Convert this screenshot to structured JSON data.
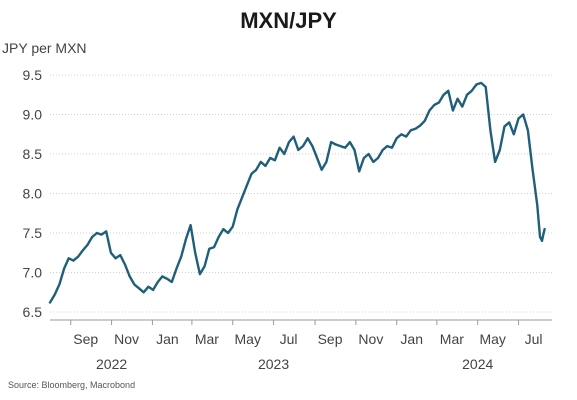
{
  "chart_data": {
    "type": "line",
    "title": "MXN/JPY",
    "ylabel": "JPY per MXN",
    "xlabel": "",
    "ylim": [
      6.5,
      9.5
    ],
    "yticks": [
      6.5,
      7.0,
      7.5,
      8.0,
      8.5,
      9.0,
      9.5
    ],
    "ytick_labels": [
      "6.5",
      "7.0",
      "7.5",
      "8.0",
      "8.5",
      "9.0",
      "9.5"
    ],
    "xtick_labels": [
      "Sep",
      "Nov",
      "Jan",
      "Mar",
      "May",
      "Jul",
      "Sep",
      "Nov",
      "Jan",
      "Mar",
      "May",
      "Jul"
    ],
    "xtick_dates": [
      "2022-09-01",
      "2022-11-01",
      "2023-01-01",
      "2023-03-01",
      "2023-05-01",
      "2023-07-01",
      "2023-09-01",
      "2023-11-01",
      "2024-01-01",
      "2024-03-01",
      "2024-05-01",
      "2024-07-01"
    ],
    "year_labels": [
      {
        "label": "2022",
        "date": "2022-11-01"
      },
      {
        "label": "2023",
        "date": "2023-07-01"
      },
      {
        "label": "2024",
        "date": "2024-05-01"
      }
    ],
    "xlim": [
      "2022-08-01",
      "2024-08-20"
    ],
    "grid": true,
    "line_color": "#1f5f7a",
    "series": [
      {
        "x": [
          "2022-08-01",
          "2022-08-08",
          "2022-08-15",
          "2022-08-22",
          "2022-08-29",
          "2022-09-05",
          "2022-09-12",
          "2022-09-19",
          "2022-09-26",
          "2022-10-03",
          "2022-10-10",
          "2022-10-17",
          "2022-10-24",
          "2022-10-31",
          "2022-11-07",
          "2022-11-14",
          "2022-11-21",
          "2022-11-28",
          "2022-12-05",
          "2022-12-12",
          "2022-12-19",
          "2022-12-26",
          "2023-01-02",
          "2023-01-09",
          "2023-01-16",
          "2023-01-23",
          "2023-01-30",
          "2023-02-06",
          "2023-02-13",
          "2023-02-20",
          "2023-02-27",
          "2023-03-06",
          "2023-03-13",
          "2023-03-20",
          "2023-03-27",
          "2023-04-03",
          "2023-04-10",
          "2023-04-17",
          "2023-04-24",
          "2023-05-01",
          "2023-05-08",
          "2023-05-15",
          "2023-05-22",
          "2023-05-29",
          "2023-06-05",
          "2023-06-12",
          "2023-06-19",
          "2023-06-26",
          "2023-07-03",
          "2023-07-10",
          "2023-07-17",
          "2023-07-24",
          "2023-07-31",
          "2023-08-07",
          "2023-08-14",
          "2023-08-21",
          "2023-08-28",
          "2023-09-04",
          "2023-09-11",
          "2023-09-18",
          "2023-09-25",
          "2023-10-02",
          "2023-10-09",
          "2023-10-16",
          "2023-10-23",
          "2023-10-30",
          "2023-11-06",
          "2023-11-13",
          "2023-11-20",
          "2023-11-27",
          "2023-12-04",
          "2023-12-11",
          "2023-12-18",
          "2023-12-25",
          "2024-01-01",
          "2024-01-08",
          "2024-01-15",
          "2024-01-22",
          "2024-01-29",
          "2024-02-05",
          "2024-02-12",
          "2024-02-19",
          "2024-02-26",
          "2024-03-04",
          "2024-03-11",
          "2024-03-18",
          "2024-03-25",
          "2024-04-01",
          "2024-04-08",
          "2024-04-15",
          "2024-04-22",
          "2024-04-29",
          "2024-05-06",
          "2024-05-13",
          "2024-05-20",
          "2024-05-27",
          "2024-06-03",
          "2024-06-10",
          "2024-06-17",
          "2024-06-24",
          "2024-07-01",
          "2024-07-08",
          "2024-07-15",
          "2024-07-22",
          "2024-07-29",
          "2024-08-02",
          "2024-08-05",
          "2024-08-07",
          "2024-08-09"
        ],
        "values": [
          6.62,
          6.72,
          6.85,
          7.05,
          7.18,
          7.15,
          7.2,
          7.28,
          7.35,
          7.45,
          7.5,
          7.48,
          7.52,
          7.25,
          7.18,
          7.22,
          7.1,
          6.95,
          6.85,
          6.8,
          6.75,
          6.82,
          6.78,
          6.88,
          6.95,
          6.92,
          6.88,
          7.05,
          7.2,
          7.42,
          7.6,
          7.25,
          6.98,
          7.08,
          7.3,
          7.32,
          7.45,
          7.55,
          7.5,
          7.58,
          7.8,
          7.95,
          8.1,
          8.25,
          8.3,
          8.4,
          8.35,
          8.45,
          8.42,
          8.58,
          8.5,
          8.65,
          8.72,
          8.55,
          8.6,
          8.7,
          8.6,
          8.45,
          8.3,
          8.4,
          8.65,
          8.62,
          8.6,
          8.58,
          8.65,
          8.55,
          8.28,
          8.45,
          8.5,
          8.4,
          8.45,
          8.55,
          8.6,
          8.58,
          8.7,
          8.75,
          8.72,
          8.8,
          8.82,
          8.86,
          8.92,
          9.05,
          9.12,
          9.15,
          9.25,
          9.3,
          9.05,
          9.2,
          9.1,
          9.25,
          9.3,
          9.38,
          9.4,
          9.35,
          8.8,
          8.4,
          8.55,
          8.85,
          8.9,
          8.75,
          8.95,
          9.0,
          8.8,
          8.3,
          7.85,
          7.45,
          7.4,
          7.48,
          7.55
        ]
      }
    ],
    "source": "Source: Bloomberg, Macrobond"
  }
}
